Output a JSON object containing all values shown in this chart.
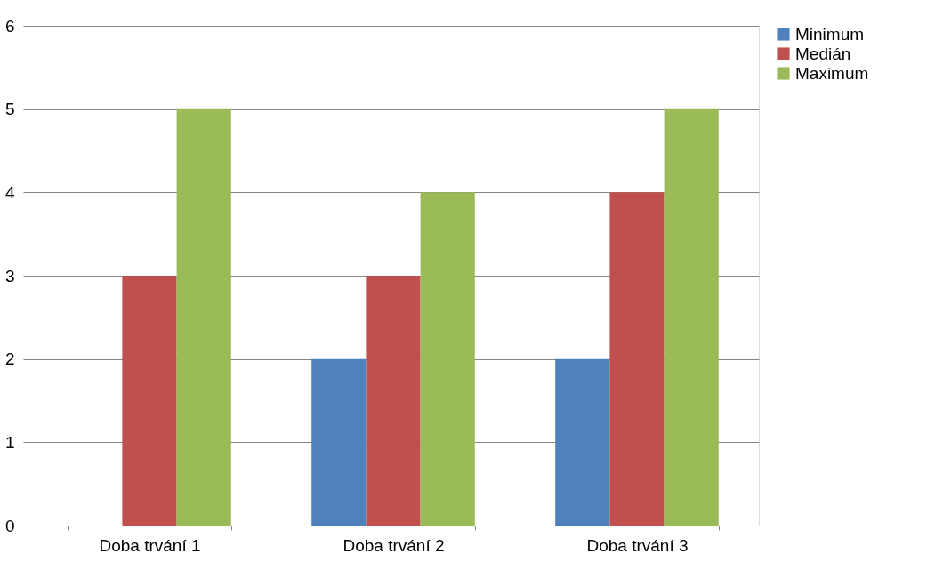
{
  "chart_data": {
    "type": "bar",
    "categories": [
      "Doba trvání 1",
      "Doba trvání 2",
      "Doba trvání 3"
    ],
    "series": [
      {
        "name": "Minimum",
        "color": "#4f81bd",
        "values": [
          0,
          2,
          2
        ]
      },
      {
        "name": "Medián",
        "color": "#c0504d",
        "values": [
          3,
          3,
          4
        ]
      },
      {
        "name": "Maximum",
        "color": "#9bbb59",
        "values": [
          5,
          4,
          5
        ]
      }
    ],
    "ylim": [
      0,
      6
    ],
    "yticks": [
      0,
      1,
      2,
      3,
      4,
      5,
      6
    ],
    "grid": "y",
    "legend": "right"
  }
}
